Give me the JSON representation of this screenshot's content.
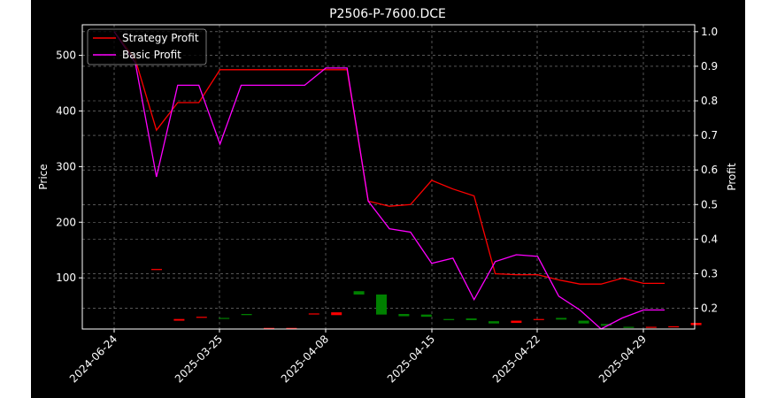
{
  "chart_data": {
    "type": "line",
    "title": "P2506-P-7600.DCE",
    "xlabel": "",
    "ylabel_left": "Price",
    "ylabel_right": "Profit",
    "background": "#000000",
    "grid": true,
    "legend_position": "top-left",
    "x_tick_labels": [
      "2024-06-24",
      "2025-03-25",
      "2025-04-08",
      "2025-04-15",
      "2025-04-22",
      "2025-04-29"
    ],
    "left_axis": {
      "ylim": [
        8,
        555
      ],
      "ticks": [
        100,
        200,
        300,
        400,
        500
      ]
    },
    "right_axis": {
      "ylim": [
        0.14,
        1.02
      ],
      "ticks": [
        0.2,
        0.3,
        0.4,
        0.5,
        0.6,
        0.7,
        0.8,
        0.9,
        1.0
      ]
    },
    "series": [
      {
        "name": "Strategy Profit",
        "color": "#ff0000",
        "axis": "right",
        "values": [
          1.0,
          0.92,
          0.715,
          0.795,
          0.795,
          0.89,
          0.89,
          0.89,
          0.89,
          0.89,
          0.89,
          0.89,
          0.51,
          0.495,
          0.5,
          0.57,
          0.545,
          0.525,
          0.3,
          0.297,
          0.297,
          0.282,
          0.27,
          0.27,
          0.287,
          0.272,
          0.272
        ]
      },
      {
        "name": "Basic Profit",
        "color": "#ff00ff",
        "axis": "right",
        "values": [
          1.0,
          0.91,
          0.58,
          0.845,
          0.845,
          0.675,
          0.845,
          0.845,
          0.845,
          0.845,
          0.895,
          0.895,
          0.51,
          0.43,
          0.42,
          0.33,
          0.345,
          0.225,
          0.335,
          0.355,
          0.35,
          0.235,
          0.195,
          0.14,
          0.172,
          0.195,
          0.195
        ]
      }
    ],
    "candles": [
      {
        "open": 116,
        "close": 114
      },
      {
        "open": 26,
        "close": 23
      },
      {
        "open": 30,
        "close": 29
      },
      {
        "open": 27,
        "close": 28
      },
      {
        "open": 33,
        "close": 35
      },
      {
        "open": 10,
        "close": 9
      },
      {
        "open": 10,
        "close": 8
      },
      {
        "open": 36,
        "close": 35
      },
      {
        "open": 38,
        "close": 33
      },
      {
        "open": 70,
        "close": 76
      },
      {
        "open": 34,
        "close": 70
      },
      {
        "open": 31,
        "close": 35
      },
      {
        "open": 30,
        "close": 34
      },
      {
        "open": 24,
        "close": 26
      },
      {
        "open": 24,
        "close": 27
      },
      {
        "open": 18,
        "close": 22
      },
      {
        "open": 23,
        "close": 19
      },
      {
        "open": 26,
        "close": 25
      },
      {
        "open": 25,
        "close": 28
      },
      {
        "open": 18,
        "close": 23
      },
      {
        "open": 14,
        "close": 17
      },
      {
        "open": 10,
        "close": 12
      },
      {
        "open": 12,
        "close": 11
      },
      {
        "open": 13,
        "close": 11
      },
      {
        "open": 19,
        "close": 15
      }
    ],
    "candle_colors": {
      "up": "#008000",
      "down": "#ff0000"
    }
  }
}
